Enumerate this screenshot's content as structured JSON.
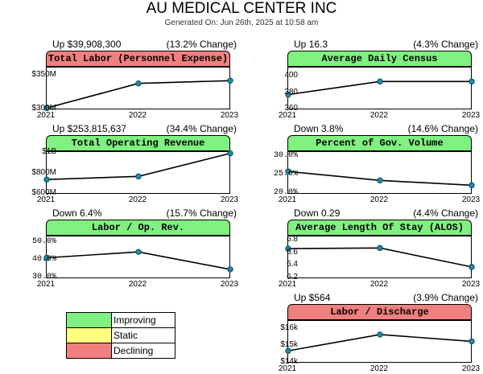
{
  "page": {
    "title": "AU MEDICAL CENTER  INC",
    "generated": "Generated On: Jun 26th, 2025 at 10:58 am"
  },
  "colors": {
    "improving": "#80f080",
    "static": "#ffff80",
    "declining": "#f08080"
  },
  "legend": [
    {
      "label": "Improving",
      "status": "improving"
    },
    {
      "label": "Static",
      "status": "static"
    },
    {
      "label": "Declining",
      "status": "declining"
    }
  ],
  "chart_data": [
    {
      "type": "line",
      "title": "Total Labor (Personnel Expense)",
      "status": "declining",
      "change_left": "Up $39,908,300",
      "change_right": "(13.2% Change)",
      "x": [
        "2021",
        "2022",
        "2023"
      ],
      "values": [
        302,
        338,
        342
      ],
      "ylim": [
        300,
        360
      ],
      "yticks": [
        300,
        350
      ],
      "yticklabels": [
        "$300M",
        "$350M"
      ]
    },
    {
      "type": "line",
      "title": "Average Daily Census",
      "status": "improving",
      "change_left": "Up 16.3",
      "change_right": "(4.3% Change)",
      "x": [
        "2021",
        "2022",
        "2023"
      ],
      "values": [
        378,
        394,
        394
      ],
      "ylim": [
        360,
        410
      ],
      "yticks": [
        360,
        380,
        400
      ],
      "yticklabels": [
        "360",
        "380",
        "400"
      ]
    },
    {
      "type": "line",
      "title": "Total Operating Revenue",
      "status": "improving",
      "change_left": "Up $253,815,637",
      "change_right": "(34.4% Change)",
      "x": [
        "2021",
        "2022",
        "2023"
      ],
      "values": [
        740,
        770,
        995
      ],
      "ylim": [
        600,
        1000
      ],
      "yticks": [
        600,
        800,
        1000
      ],
      "yticklabels": [
        "$600M",
        "$800M",
        "$1B"
      ]
    },
    {
      "type": "line",
      "title": "Percent of Gov. Volume",
      "status": "improving",
      "change_left": "Down 3.8%",
      "change_right": "(14.6% Change)",
      "x": [
        "2021",
        "2022",
        "2023"
      ],
      "values": [
        26.0,
        23.6,
        22.3
      ],
      "ylim": [
        20,
        31
      ],
      "yticks": [
        20,
        25,
        30
      ],
      "yticklabels": [
        "20.0%",
        "25.0%",
        "30.0%"
      ]
    },
    {
      "type": "line",
      "title": "Labor / Op. Rev.",
      "status": "improving",
      "change_left": "Down 6.4%",
      "change_right": "(15.7% Change)",
      "x": [
        "2021",
        "2022",
        "2023"
      ],
      "values": [
        41.5,
        44.8,
        35.0
      ],
      "ylim": [
        30,
        53
      ],
      "yticks": [
        30,
        40,
        50
      ],
      "yticklabels": [
        "30.0%",
        "40.0%",
        "50.0%"
      ]
    },
    {
      "type": "line",
      "title": "Average Length Of Stay (ALOS)",
      "status": "improving",
      "change_left": "Down 0.29",
      "change_right": "(4.4% Change)",
      "x": [
        "2021",
        "2022",
        "2023"
      ],
      "values": [
        6.67,
        6.68,
        6.38
      ],
      "ylim": [
        6.2,
        6.85
      ],
      "yticks": [
        6.2,
        6.4,
        6.6,
        6.8
      ],
      "yticklabels": [
        "6.2",
        "6.4",
        "6.6",
        "6.8"
      ]
    },
    {
      "type": "line",
      "title": "Labor / Discharge",
      "status": "declining",
      "change_left": "Up $564",
      "change_right": "(3.9% Change)",
      "x": [
        "2021",
        "2022",
        "2023"
      ],
      "values": [
        14700,
        15650,
        15250
      ],
      "ylim": [
        14000,
        16400
      ],
      "yticks": [
        14000,
        15000,
        16000
      ],
      "yticklabels": [
        "$14k",
        "$15k",
        "$16k"
      ]
    }
  ]
}
